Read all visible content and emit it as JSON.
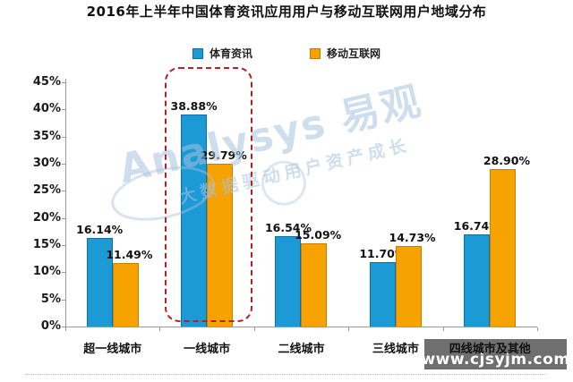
{
  "title": "2016年上半年中国体育资讯应用用户与移动互联网用户地域分布",
  "chart_data": {
    "type": "bar",
    "title": "2016年上半年中国体育资讯应用用户与移动互联网用户地域分布",
    "categories": [
      "超一线城市",
      "一线城市",
      "二线城市",
      "三线城市",
      "四线城市及其他"
    ],
    "series": [
      {
        "name": "体育资讯",
        "color": "#1b9ad6",
        "border_color": "#0e6fa4",
        "values": [
          16.14,
          38.88,
          16.54,
          11.7,
          16.74
        ]
      },
      {
        "name": "移动互联网",
        "color": "#f6a200",
        "border_color": "#c77f00",
        "values": [
          11.49,
          29.79,
          15.09,
          14.73,
          28.9
        ]
      }
    ],
    "value_labels": [
      [
        "16.14%",
        "38.88%",
        "16.54%",
        "11.70%",
        "16.74%"
      ],
      [
        "11.49%",
        "29.79%",
        "15.09%",
        "14.73%",
        "28.90%"
      ]
    ],
    "ylim": [
      0,
      45
    ],
    "ytick_step": 5,
    "ytick_labels": [
      "0%",
      "5%",
      "10%",
      "15%",
      "20%",
      "25%",
      "30%",
      "35%",
      "40%",
      "45%"
    ],
    "grid": "off",
    "legend_position": "top",
    "highlight": {
      "category": "一线城市",
      "category_index": 1,
      "style": "red-dashed-rounded-box",
      "color": "#b22222"
    }
  },
  "watermark": {
    "brand": "Analysys 易观",
    "tagline": "大数据驱动用户资产成长",
    "color": "#a8c2dd"
  },
  "footer": {
    "website": "www.cjsyjm.com"
  }
}
